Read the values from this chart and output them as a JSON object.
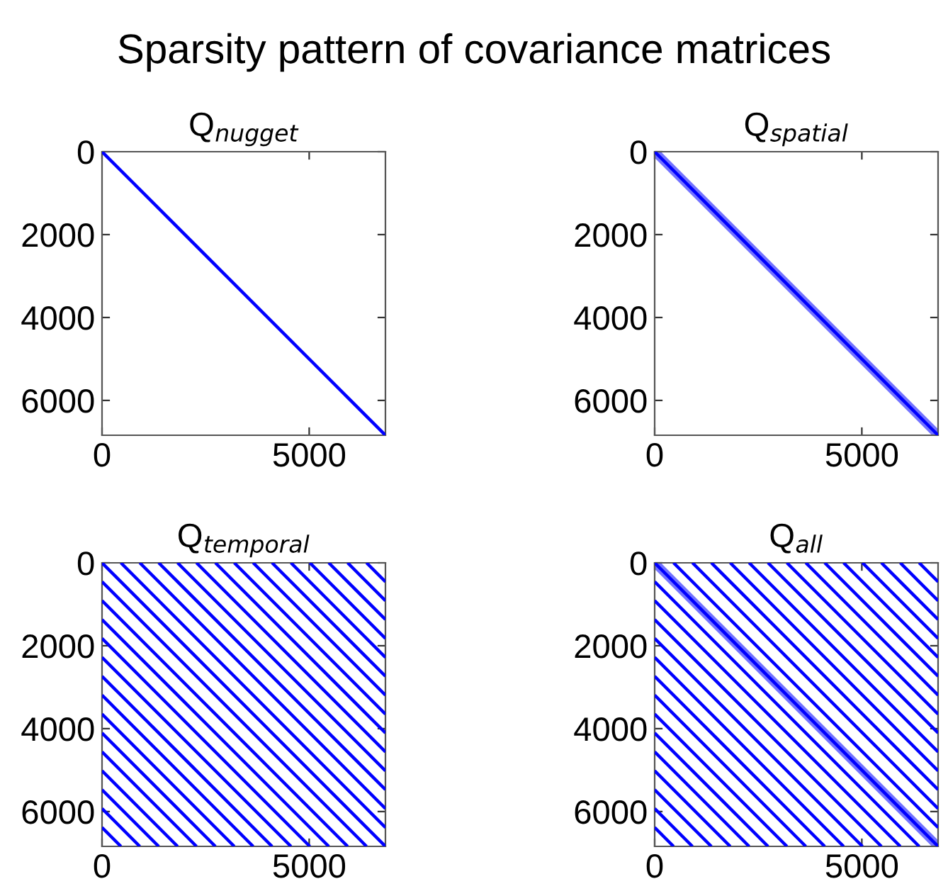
{
  "chart_data": [
    {
      "type": "line",
      "title": "Sparsity pattern of covariance matrices",
      "subtitle": "Q$_{nugget}$",
      "xlim": [
        0,
        6840
      ],
      "ylim": [
        6840,
        0
      ],
      "xticks": [
        0,
        5000
      ],
      "yticks": [
        0,
        2000,
        4000,
        6000
      ],
      "grid": false,
      "series": [
        {
          "color": "#0000ff",
          "x": [
            0,
            6840
          ],
          "values": [
            0,
            6840
          ]
        }
      ]
    },
    {
      "type": "line",
      "subtitle": "Q$_{spatial}$",
      "xlim": [
        0,
        6840
      ],
      "ylim": [
        6840,
        0
      ],
      "xticks": [
        0,
        5000
      ],
      "yticks": [
        0,
        2000,
        4000,
        6000
      ],
      "grid": false,
      "series": [
        {
          "color": "#0000ff",
          "x": [
            0,
            150,
            6690,
            6840
          ],
          "values": [
            0,
            150,
            6690,
            6840
          ],
          "lower": [
            0,
            0,
            6540,
            6690
          ],
          "upper": [
            150,
            300,
            6840,
            6840
          ]
        }
      ]
    },
    {
      "type": "line",
      "subtitle": "Q$_{temporal}$",
      "xlim": [
        0,
        6840
      ],
      "ylim": [
        6840,
        0
      ],
      "xticks": [
        0,
        5000
      ],
      "yticks": [
        0,
        2000,
        4000,
        6000
      ],
      "grid": false,
      "series": [
        {
          "color": "#0000ff",
          "x": [
            0,
            6840
          ],
          "values": [
            0,
            6840
          ]
        },
        {
          "color": "#0000ff",
          "x": [
            456,
            6840
          ],
          "values": [
            0,
            6384
          ]
        },
        {
          "color": "#0000ff",
          "x": [
            912,
            6840
          ],
          "values": [
            0,
            5928
          ]
        },
        {
          "color": "#0000ff",
          "x": [
            1368,
            6840
          ],
          "values": [
            0,
            5472
          ]
        },
        {
          "color": "#0000ff",
          "x": [
            1824,
            6840
          ],
          "values": [
            0,
            5016
          ]
        },
        {
          "color": "#0000ff",
          "x": [
            2280,
            6840
          ],
          "values": [
            0,
            4560
          ]
        },
        {
          "color": "#0000ff",
          "x": [
            2736,
            6840
          ],
          "values": [
            0,
            4104
          ]
        },
        {
          "color": "#0000ff",
          "x": [
            3192,
            6840
          ],
          "values": [
            0,
            3648
          ]
        },
        {
          "color": "#0000ff",
          "x": [
            3648,
            6840
          ],
          "values": [
            0,
            3192
          ]
        },
        {
          "color": "#0000ff",
          "x": [
            4104,
            6840
          ],
          "values": [
            0,
            2736
          ]
        },
        {
          "color": "#0000ff",
          "x": [
            4560,
            6840
          ],
          "values": [
            0,
            2280
          ]
        },
        {
          "color": "#0000ff",
          "x": [
            5016,
            6840
          ],
          "values": [
            0,
            1824
          ]
        },
        {
          "color": "#0000ff",
          "x": [
            5472,
            6840
          ],
          "values": [
            0,
            1368
          ]
        },
        {
          "color": "#0000ff",
          "x": [
            5928,
            6840
          ],
          "values": [
            0,
            912
          ]
        },
        {
          "color": "#0000ff",
          "x": [
            6384,
            6840
          ],
          "values": [
            0,
            456
          ]
        },
        {
          "color": "#0000ff",
          "x": [
            0,
            6384
          ],
          "values": [
            456,
            6840
          ]
        },
        {
          "color": "#0000ff",
          "x": [
            0,
            5928
          ],
          "values": [
            912,
            6840
          ]
        },
        {
          "color": "#0000ff",
          "x": [
            0,
            5472
          ],
          "values": [
            1368,
            6840
          ]
        },
        {
          "color": "#0000ff",
          "x": [
            0,
            5016
          ],
          "values": [
            1824,
            6840
          ]
        },
        {
          "color": "#0000ff",
          "x": [
            0,
            4560
          ],
          "values": [
            2280,
            6840
          ]
        },
        {
          "color": "#0000ff",
          "x": [
            0,
            4104
          ],
          "values": [
            2736,
            6840
          ]
        },
        {
          "color": "#0000ff",
          "x": [
            0,
            3648
          ],
          "values": [
            3192,
            6840
          ]
        },
        {
          "color": "#0000ff",
          "x": [
            0,
            3192
          ],
          "values": [
            3648,
            6840
          ]
        },
        {
          "color": "#0000ff",
          "x": [
            0,
            2736
          ],
          "values": [
            4104,
            6840
          ]
        },
        {
          "color": "#0000ff",
          "x": [
            0,
            2280
          ],
          "values": [
            4560,
            6840
          ]
        },
        {
          "color": "#0000ff",
          "x": [
            0,
            1824
          ],
          "values": [
            5016,
            6840
          ]
        },
        {
          "color": "#0000ff",
          "x": [
            0,
            1368
          ],
          "values": [
            5472,
            6840
          ]
        },
        {
          "color": "#0000ff",
          "x": [
            0,
            912
          ],
          "values": [
            5928,
            6840
          ]
        },
        {
          "color": "#0000ff",
          "x": [
            0,
            456
          ],
          "values": [
            6384,
            6840
          ]
        }
      ]
    },
    {
      "type": "line",
      "subtitle": "Q$_{all}$",
      "xlim": [
        0,
        6840
      ],
      "ylim": [
        6840,
        0
      ],
      "xticks": [
        0,
        5000
      ],
      "yticks": [
        0,
        2000,
        4000,
        6000
      ],
      "grid": false,
      "series": [
        {
          "color": "#0000ff",
          "x": [
            0,
            150,
            6690,
            6840
          ],
          "values": [
            0,
            150,
            6690,
            6840
          ],
          "lower": [
            0,
            0,
            6540,
            6690
          ],
          "upper": [
            150,
            300,
            6840,
            6840
          ]
        },
        {
          "color": "#0000ff",
          "x": [
            456,
            6840
          ],
          "values": [
            0,
            6384
          ]
        },
        {
          "color": "#0000ff",
          "x": [
            912,
            6840
          ],
          "values": [
            0,
            5928
          ]
        },
        {
          "color": "#0000ff",
          "x": [
            1368,
            6840
          ],
          "values": [
            0,
            5472
          ]
        },
        {
          "color": "#0000ff",
          "x": [
            1824,
            6840
          ],
          "values": [
            0,
            5016
          ]
        },
        {
          "color": "#0000ff",
          "x": [
            2280,
            6840
          ],
          "values": [
            0,
            4560
          ]
        },
        {
          "color": "#0000ff",
          "x": [
            2736,
            6840
          ],
          "values": [
            0,
            4104
          ]
        },
        {
          "color": "#0000ff",
          "x": [
            3192,
            6840
          ],
          "values": [
            0,
            3648
          ]
        },
        {
          "color": "#0000ff",
          "x": [
            3648,
            6840
          ],
          "values": [
            0,
            3192
          ]
        },
        {
          "color": "#0000ff",
          "x": [
            4104,
            6840
          ],
          "values": [
            0,
            2736
          ]
        },
        {
          "color": "#0000ff",
          "x": [
            4560,
            6840
          ],
          "values": [
            0,
            2280
          ]
        },
        {
          "color": "#0000ff",
          "x": [
            5016,
            6840
          ],
          "values": [
            0,
            1824
          ]
        },
        {
          "color": "#0000ff",
          "x": [
            5472,
            6840
          ],
          "values": [
            0,
            1368
          ]
        },
        {
          "color": "#0000ff",
          "x": [
            5928,
            6840
          ],
          "values": [
            0,
            912
          ]
        },
        {
          "color": "#0000ff",
          "x": [
            6384,
            6840
          ],
          "values": [
            0,
            456
          ]
        },
        {
          "color": "#0000ff",
          "x": [
            0,
            6384
          ],
          "values": [
            456,
            6840
          ]
        },
        {
          "color": "#0000ff",
          "x": [
            0,
            5928
          ],
          "values": [
            912,
            6840
          ]
        },
        {
          "color": "#0000ff",
          "x": [
            0,
            5472
          ],
          "values": [
            1368,
            6840
          ]
        },
        {
          "color": "#0000ff",
          "x": [
            0,
            5016
          ],
          "values": [
            1824,
            6840
          ]
        },
        {
          "color": "#0000ff",
          "x": [
            0,
            4560
          ],
          "values": [
            2280,
            6840
          ]
        },
        {
          "color": "#0000ff",
          "x": [
            0,
            4104
          ],
          "values": [
            2736,
            6840
          ]
        },
        {
          "color": "#0000ff",
          "x": [
            0,
            3648
          ],
          "values": [
            3192,
            6840
          ]
        },
        {
          "color": "#0000ff",
          "x": [
            0,
            3192
          ],
          "values": [
            3648,
            6840
          ]
        },
        {
          "color": "#0000ff",
          "x": [
            0,
            2736
          ],
          "values": [
            4104,
            6840
          ]
        },
        {
          "color": "#0000ff",
          "x": [
            0,
            2280
          ],
          "values": [
            4560,
            6840
          ]
        },
        {
          "color": "#0000ff",
          "x": [
            0,
            1824
          ],
          "values": [
            5016,
            6840
          ]
        },
        {
          "color": "#0000ff",
          "x": [
            0,
            1368
          ],
          "values": [
            5472,
            6840
          ]
        },
        {
          "color": "#0000ff",
          "x": [
            0,
            912
          ],
          "values": [
            5928,
            6840
          ]
        },
        {
          "color": "#0000ff",
          "x": [
            0,
            456
          ],
          "values": [
            6384,
            6840
          ]
        }
      ]
    }
  ]
}
